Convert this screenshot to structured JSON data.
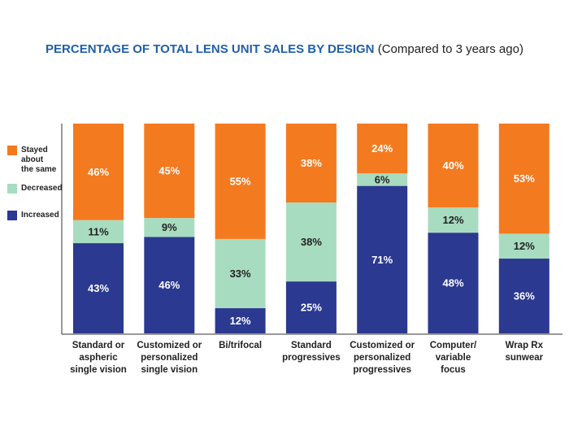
{
  "chart_data": {
    "type": "stacked-bar",
    "title": "PERCENTAGE OF TOTAL LENS UNIT SALES BY DESIGN",
    "subtitle": "(Compared to 3 years ago)",
    "categories": [
      "Standard or\naspheric\nsingle vision",
      "Customized or\npersonalized\nsingle vision",
      "Bi/trifocal",
      "Standard\nprogressives",
      "Customized or\npersonalized\nprogressives",
      "Computer/\nvariable\nfocus",
      "Wrap Rx\nsunwear"
    ],
    "series": [
      {
        "name": "Increased",
        "color": "#2b3990",
        "values": [
          43,
          46,
          12,
          25,
          71,
          48,
          36
        ],
        "value_labels": [
          "43%",
          "46%",
          "12%",
          "25%",
          "71%",
          "48%",
          "36%"
        ]
      },
      {
        "name": "Decreased",
        "color": "#a8dcc0",
        "values": [
          11,
          9,
          33,
          38,
          6,
          12,
          12
        ],
        "value_labels": [
          "11%",
          "9%",
          "33%",
          "38%",
          "6%",
          "12%",
          "12%"
        ]
      },
      {
        "name": "Stayed\nabout\nthe same",
        "color": "#f47a20",
        "values": [
          46,
          45,
          55,
          38,
          24,
          40,
          53
        ],
        "value_labels": [
          "46%",
          "45%",
          "55%",
          "38%",
          "24%",
          "40%",
          "53%"
        ]
      }
    ]
  }
}
